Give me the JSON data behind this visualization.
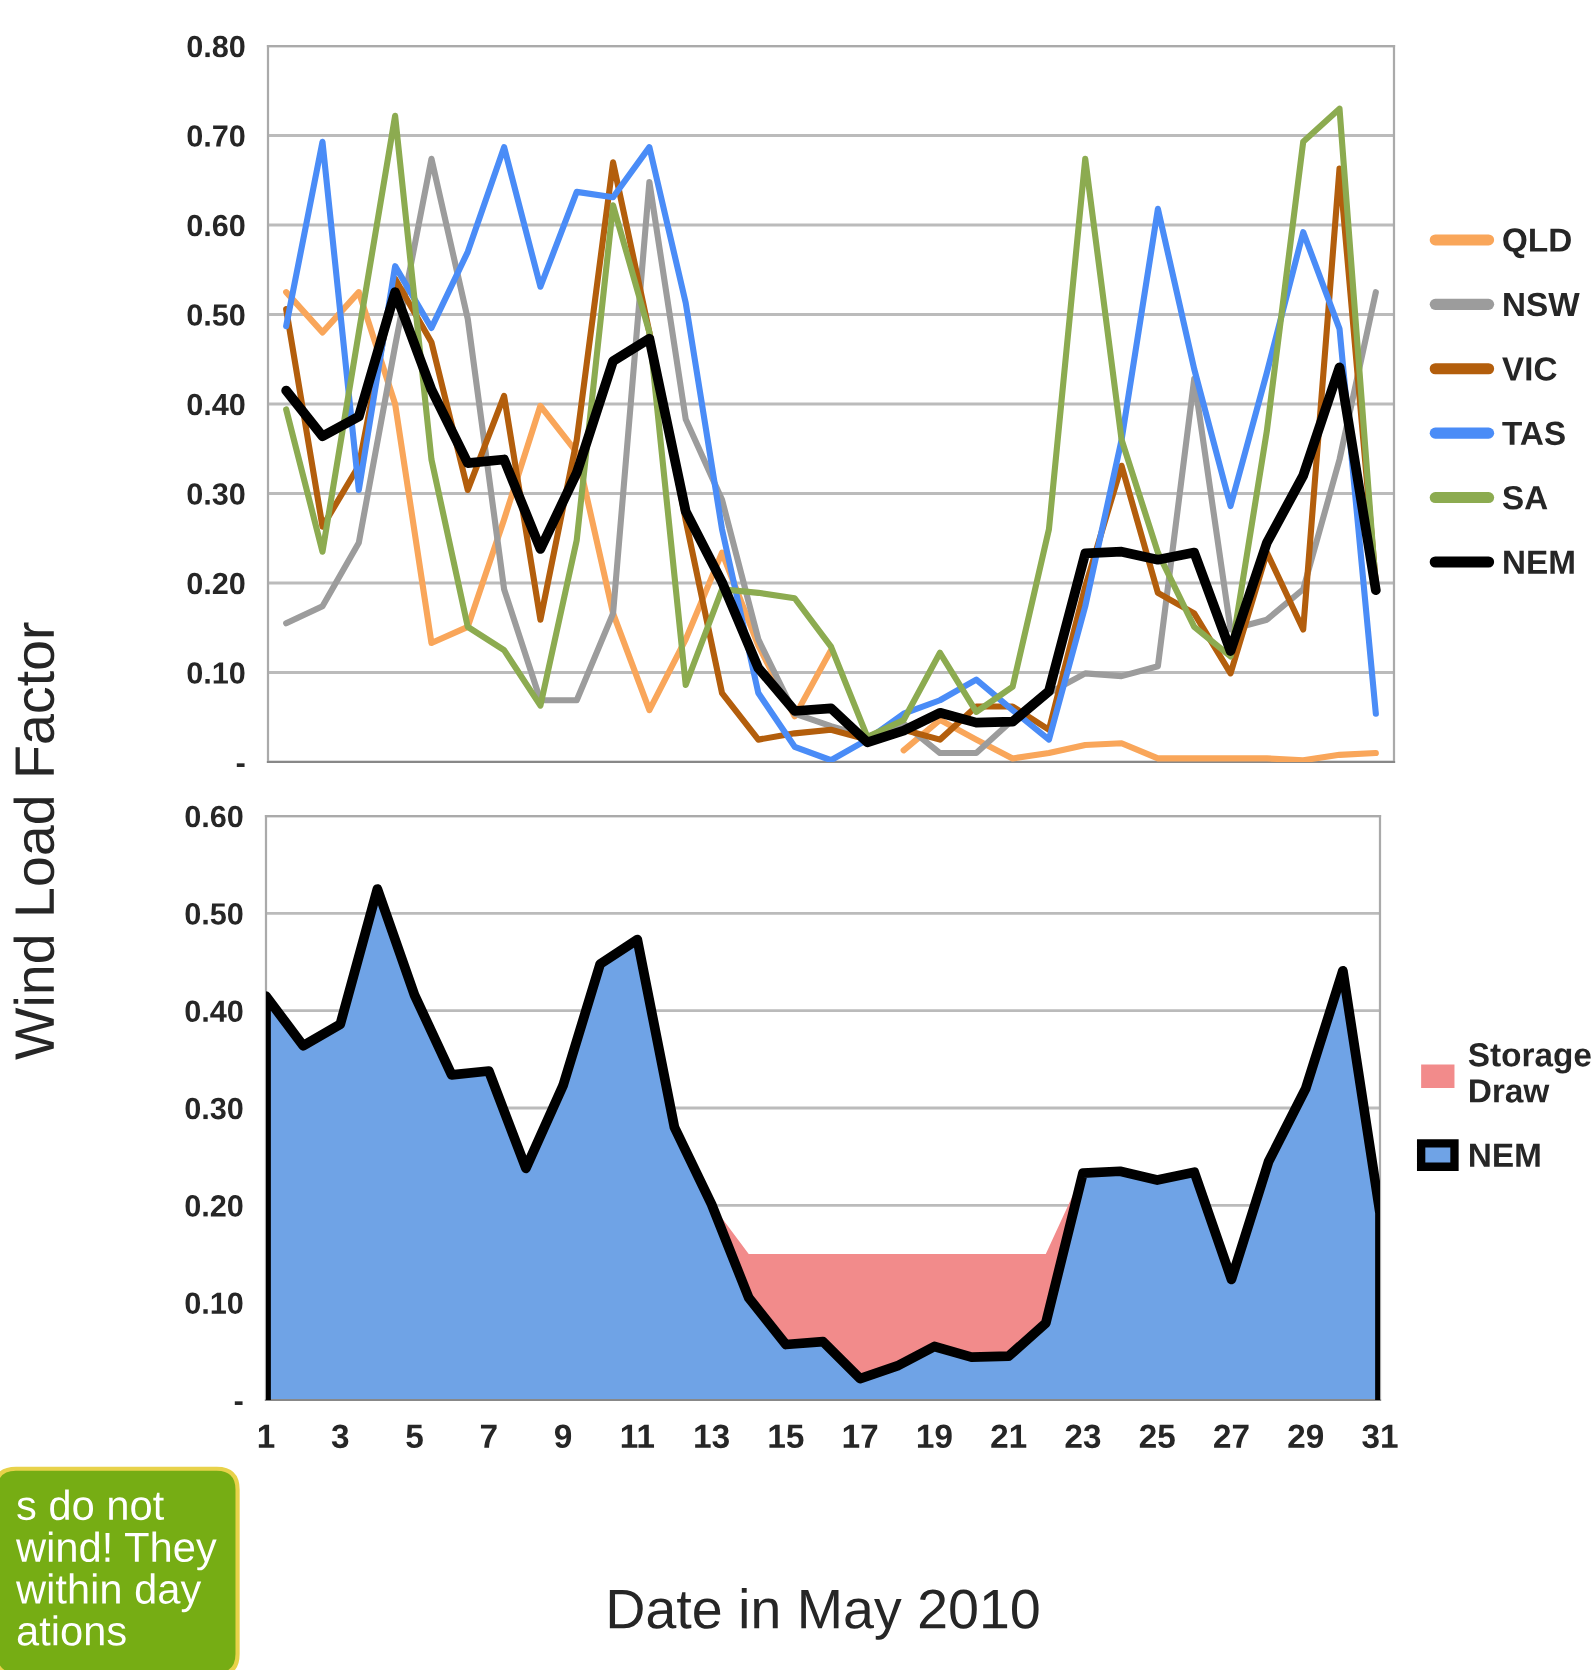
{
  "chart_data": [
    {
      "type": "line",
      "ylabel": "Wind Load Factor",
      "categories": [
        null,
        null,
        null,
        null,
        null,
        null,
        null,
        null,
        null,
        null,
        null,
        null,
        null,
        null,
        null,
        null,
        null,
        null,
        null,
        null,
        null,
        null,
        null,
        null,
        null,
        null,
        null,
        null,
        null,
        null,
        null
      ],
      "series": [
        {
          "name": "QLD",
          "color": "#f9a65a",
          "values": [
            0.525,
            0.48,
            0.525,
            0.4,
            0.133,
            0.151,
            0.271,
            0.398,
            0.346,
            0.166,
            0.058,
            0.137,
            0.234,
            0.13,
            0.051,
            0.125,
            null,
            0.013,
            0.047,
            0.025,
            0.004,
            0.01,
            0.019,
            0.021,
            0.004,
            0.004,
            0.004,
            0.004,
            0.002,
            0.008,
            0.01
          ]
        },
        {
          "name": "NSW",
          "color": "#9c9c9c",
          "values": [
            0.155,
            0.174,
            0.245,
            0.465,
            0.674,
            0.495,
            0.193,
            0.069,
            0.069,
            0.166,
            0.648,
            0.383,
            0.293,
            0.137,
            0.054,
            0.04,
            0.028,
            0.043,
            0.01,
            0.01,
            0.047,
            0.077,
            0.099,
            0.096,
            0.107,
            0.428,
            0.148,
            0.159,
            0.193,
            0.338,
            0.525
          ]
        },
        {
          "name": "VIC",
          "color": "#b35e0c",
          "values": [
            0.506,
            0.263,
            0.331,
            0.54,
            0.469,
            0.304,
            0.409,
            0.159,
            0.36,
            0.67,
            0.48,
            0.27,
            0.077,
            0.025,
            0.032,
            0.036,
            0.025,
            0.036,
            0.025,
            0.062,
            0.062,
            0.036,
            0.196,
            0.331,
            0.189,
            0.166,
            0.099,
            0.234,
            0.148,
            0.663,
            0.2
          ]
        },
        {
          "name": "TAS",
          "color": "#4a8cf7",
          "values": [
            0.487,
            0.693,
            0.304,
            0.554,
            0.485,
            0.57,
            0.687,
            0.531,
            0.637,
            0.631,
            0.687,
            0.513,
            0.26,
            0.077,
            0.017,
            0.002,
            0.025,
            0.054,
            0.069,
            0.092,
            0.058,
            0.025,
            0.174,
            0.36,
            0.618,
            0.439,
            0.286,
            0.435,
            0.592,
            0.484,
            0.054
          ]
        },
        {
          "name": "SA",
          "color": "#8cab50",
          "values": [
            0.394,
            0.235,
            0.48,
            0.722,
            0.338,
            0.151,
            0.125,
            0.063,
            0.248,
            0.622,
            0.48,
            0.086,
            0.193,
            0.189,
            0.183,
            0.129,
            0.028,
            0.047,
            0.122,
            0.056,
            0.084,
            0.26,
            0.674,
            0.36,
            0.234,
            0.151,
            0.118,
            0.37,
            0.693,
            0.73,
            0.196
          ]
        },
        {
          "name": "NEM",
          "color": "#000000",
          "values": [
            0.415,
            0.364,
            0.386,
            0.525,
            0.416,
            0.334,
            0.338,
            0.238,
            0.323,
            0.448,
            0.473,
            0.28,
            0.201,
            0.105,
            0.057,
            0.06,
            0.022,
            0.035,
            0.055,
            0.044,
            0.045,
            0.079,
            0.233,
            0.235,
            0.226,
            0.234,
            0.124,
            0.245,
            0.32,
            0.441,
            0.192
          ]
        }
      ],
      "ylim": [
        0,
        0.8
      ],
      "yticks": [
        {
          "value": 0,
          "label": "-"
        },
        {
          "value": 0.1,
          "label": "0.10"
        },
        {
          "value": 0.2,
          "label": "0.20"
        },
        {
          "value": 0.3,
          "label": "0.30"
        },
        {
          "value": 0.4,
          "label": "0.40"
        },
        {
          "value": 0.5,
          "label": "0.50"
        },
        {
          "value": 0.6,
          "label": "0.60"
        },
        {
          "value": 0.7,
          "label": "0.70"
        },
        {
          "value": 0.8,
          "label": "0.80"
        }
      ],
      "grid": "y",
      "legend": "right",
      "tick_labels": "y"
    },
    {
      "type": "area",
      "xlabel": "Date in May 2010",
      "stacked": true,
      "categories": [
        "1",
        null,
        "3",
        null,
        "5",
        null,
        "7",
        null,
        "9",
        null,
        "11",
        null,
        "13",
        null,
        "15",
        null,
        "17",
        null,
        "19",
        null,
        "21",
        null,
        "23",
        null,
        "25",
        null,
        "27",
        null,
        "29",
        null,
        "31"
      ],
      "series": [
        {
          "name": "NEM",
          "color": "#6fa3e6",
          "values": [
            0.415,
            0.364,
            0.386,
            0.525,
            0.416,
            0.334,
            0.338,
            0.238,
            0.323,
            0.448,
            0.473,
            0.28,
            0.201,
            0.105,
            0.057,
            0.06,
            0.022,
            0.035,
            0.055,
            0.044,
            0.045,
            0.079,
            0.233,
            0.235,
            0.226,
            0.234,
            0.124,
            0.245,
            0.32,
            0.441,
            0.192
          ]
        },
        {
          "name": "Storage Draw",
          "color": "#f28b8b",
          "values": [
            null,
            null,
            null,
            null,
            null,
            null,
            null,
            null,
            null,
            null,
            null,
            null,
            0,
            0.045,
            0.093,
            0.09,
            0.128,
            0.115,
            0.095,
            0.106,
            0.105,
            0.071,
            0,
            null,
            null,
            null,
            null,
            null,
            null,
            null,
            null
          ]
        }
      ],
      "ylim": [
        0,
        0.6
      ],
      "yticks": [
        {
          "value": 0,
          "label": "-"
        },
        {
          "value": 0.1,
          "label": "0.10"
        },
        {
          "value": 0.2,
          "label": "0.20"
        },
        {
          "value": 0.3,
          "label": "0.30"
        },
        {
          "value": 0.4,
          "label": "0.40"
        },
        {
          "value": 0.5,
          "label": "0.50"
        },
        {
          "value": 0.6,
          "label": "0.60"
        }
      ],
      "grid": "y",
      "legend": "right",
      "annotations": [
        "s do not\nwind! They\nwithin day\nations"
      ]
    }
  ]
}
